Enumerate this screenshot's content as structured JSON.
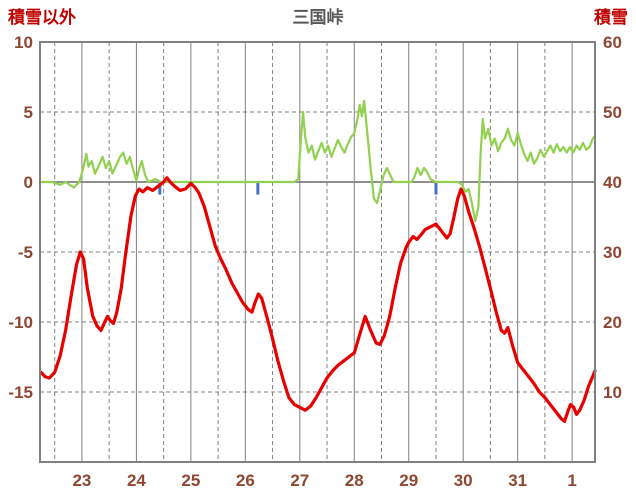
{
  "header": {
    "left_axis_title": "積雪以外",
    "right_axis_title": "積雪"
  },
  "colors": {
    "header_text": "#c00000",
    "title_text": "#595959",
    "axis_text": "#8f4632",
    "grid": "#808080",
    "background": "#ffffff"
  },
  "chart_data": {
    "type": "line",
    "title": "三国峠",
    "x_axis": {
      "labels": [
        "23",
        "24",
        "25",
        "26",
        "27",
        "28",
        "29",
        "30",
        "31",
        "1"
      ],
      "tick_positions": [
        23,
        24,
        25,
        26,
        27,
        28,
        29,
        30,
        31,
        32
      ],
      "range": [
        22.23,
        32.42
      ],
      "minor_grid": "dashed-half-day"
    },
    "left_axis": {
      "title": "積雪以外",
      "ticks": [
        10,
        5,
        0,
        -5,
        -10,
        -15
      ],
      "range": [
        -20,
        10
      ]
    },
    "right_axis": {
      "title": "積雪",
      "ticks": [
        60,
        50,
        40,
        30,
        20,
        10
      ],
      "range": [
        0,
        60
      ]
    },
    "grid": {
      "major_vertical": "solid",
      "minor_vertical": "dashed",
      "horizontal": "dashed",
      "zero_line": "solid"
    },
    "legend": "none",
    "precip_marks": {
      "id": "blue-tick-marks",
      "color": "#4472c4",
      "width": 3,
      "marks": [
        {
          "x": 24.43,
          "from": 0,
          "to": -0.9
        },
        {
          "x": 26.23,
          "from": 0,
          "to": -0.9
        },
        {
          "x": 29.5,
          "from": 0,
          "to": -0.9
        }
      ]
    },
    "series": [
      {
        "id": "red-line",
        "axis": "left",
        "color": "#e60000",
        "stroke_width": 3.2,
        "points": [
          [
            22.25,
            -13.6
          ],
          [
            22.32,
            -13.9
          ],
          [
            22.4,
            -14.0
          ],
          [
            22.5,
            -13.6
          ],
          [
            22.6,
            -12.4
          ],
          [
            22.7,
            -10.6
          ],
          [
            22.8,
            -8.2
          ],
          [
            22.9,
            -5.9
          ],
          [
            22.97,
            -5.0
          ],
          [
            23.03,
            -5.5
          ],
          [
            23.1,
            -7.6
          ],
          [
            23.2,
            -9.6
          ],
          [
            23.28,
            -10.3
          ],
          [
            23.35,
            -10.6
          ],
          [
            23.42,
            -10.0
          ],
          [
            23.47,
            -9.6
          ],
          [
            23.52,
            -9.9
          ],
          [
            23.58,
            -10.1
          ],
          [
            23.64,
            -9.3
          ],
          [
            23.72,
            -7.6
          ],
          [
            23.8,
            -5.2
          ],
          [
            23.9,
            -2.4
          ],
          [
            23.98,
            -1.0
          ],
          [
            24.05,
            -0.5
          ],
          [
            24.12,
            -0.7
          ],
          [
            24.2,
            -0.4
          ],
          [
            24.3,
            -0.6
          ],
          [
            24.4,
            -0.3
          ],
          [
            24.5,
            0.0
          ],
          [
            24.56,
            0.3
          ],
          [
            24.62,
            0.0
          ],
          [
            24.7,
            -0.3
          ],
          [
            24.8,
            -0.6
          ],
          [
            24.9,
            -0.5
          ],
          [
            25.0,
            -0.1
          ],
          [
            25.08,
            -0.4
          ],
          [
            25.15,
            -0.8
          ],
          [
            25.25,
            -1.8
          ],
          [
            25.35,
            -3.2
          ],
          [
            25.45,
            -4.6
          ],
          [
            25.55,
            -5.5
          ],
          [
            25.65,
            -6.3
          ],
          [
            25.75,
            -7.2
          ],
          [
            25.85,
            -7.9
          ],
          [
            25.95,
            -8.6
          ],
          [
            26.05,
            -9.1
          ],
          [
            26.12,
            -9.3
          ],
          [
            26.18,
            -8.6
          ],
          [
            26.24,
            -8.0
          ],
          [
            26.3,
            -8.3
          ],
          [
            26.4,
            -9.7
          ],
          [
            26.5,
            -11.2
          ],
          [
            26.6,
            -12.8
          ],
          [
            26.7,
            -14.2
          ],
          [
            26.8,
            -15.4
          ],
          [
            26.9,
            -15.9
          ],
          [
            27.0,
            -16.1
          ],
          [
            27.1,
            -16.3
          ],
          [
            27.2,
            -16.0
          ],
          [
            27.3,
            -15.4
          ],
          [
            27.4,
            -14.7
          ],
          [
            27.5,
            -14.0
          ],
          [
            27.6,
            -13.5
          ],
          [
            27.7,
            -13.1
          ],
          [
            27.8,
            -12.8
          ],
          [
            27.9,
            -12.5
          ],
          [
            28.0,
            -12.2
          ],
          [
            28.1,
            -10.9
          ],
          [
            28.2,
            -9.6
          ],
          [
            28.3,
            -10.6
          ],
          [
            28.4,
            -11.5
          ],
          [
            28.47,
            -11.6
          ],
          [
            28.55,
            -11.0
          ],
          [
            28.65,
            -9.6
          ],
          [
            28.75,
            -7.6
          ],
          [
            28.85,
            -5.8
          ],
          [
            28.95,
            -4.7
          ],
          [
            29.0,
            -4.3
          ],
          [
            29.08,
            -3.9
          ],
          [
            29.15,
            -4.1
          ],
          [
            29.22,
            -3.8
          ],
          [
            29.3,
            -3.4
          ],
          [
            29.4,
            -3.2
          ],
          [
            29.5,
            -3.0
          ],
          [
            29.6,
            -3.5
          ],
          [
            29.7,
            -4.0
          ],
          [
            29.76,
            -3.7
          ],
          [
            29.83,
            -2.5
          ],
          [
            29.9,
            -1.2
          ],
          [
            29.96,
            -0.5
          ],
          [
            30.02,
            -1.0
          ],
          [
            30.1,
            -2.1
          ],
          [
            30.2,
            -3.3
          ],
          [
            30.3,
            -4.6
          ],
          [
            30.4,
            -6.1
          ],
          [
            30.5,
            -7.6
          ],
          [
            30.6,
            -9.2
          ],
          [
            30.7,
            -10.6
          ],
          [
            30.76,
            -10.8
          ],
          [
            30.82,
            -10.4
          ],
          [
            30.9,
            -11.6
          ],
          [
            31.0,
            -12.9
          ],
          [
            31.1,
            -13.4
          ],
          [
            31.2,
            -13.9
          ],
          [
            31.3,
            -14.4
          ],
          [
            31.4,
            -15.0
          ],
          [
            31.5,
            -15.4
          ],
          [
            31.6,
            -15.9
          ],
          [
            31.7,
            -16.4
          ],
          [
            31.8,
            -16.9
          ],
          [
            31.86,
            -17.1
          ],
          [
            31.92,
            -16.4
          ],
          [
            31.97,
            -15.9
          ],
          [
            32.03,
            -16.1
          ],
          [
            32.08,
            -16.6
          ],
          [
            32.14,
            -16.3
          ],
          [
            32.22,
            -15.6
          ],
          [
            32.3,
            -14.6
          ],
          [
            32.42,
            -13.5
          ]
        ]
      },
      {
        "id": "green-line",
        "axis": "right",
        "color": "#92d050",
        "stroke_width": 2.2,
        "points": [
          [
            22.25,
            40
          ],
          [
            22.45,
            40
          ],
          [
            22.6,
            39.6
          ],
          [
            22.7,
            40
          ],
          [
            22.85,
            39.2
          ],
          [
            22.95,
            40
          ],
          [
            23.02,
            41.8
          ],
          [
            23.08,
            44
          ],
          [
            23.12,
            42.2
          ],
          [
            23.18,
            43
          ],
          [
            23.24,
            41.2
          ],
          [
            23.3,
            42.2
          ],
          [
            23.38,
            43.6
          ],
          [
            23.44,
            42
          ],
          [
            23.5,
            43
          ],
          [
            23.56,
            41.2
          ],
          [
            23.62,
            42.2
          ],
          [
            23.7,
            43.6
          ],
          [
            23.76,
            44.2
          ],
          [
            23.82,
            42.6
          ],
          [
            23.88,
            43.6
          ],
          [
            23.94,
            41.8
          ],
          [
            24.0,
            40.2
          ],
          [
            24.06,
            42.2
          ],
          [
            24.1,
            43
          ],
          [
            24.16,
            41
          ],
          [
            24.22,
            40
          ],
          [
            24.35,
            40.4
          ],
          [
            24.45,
            40
          ],
          [
            24.6,
            40
          ],
          [
            25.0,
            40
          ],
          [
            25.5,
            40
          ],
          [
            26.0,
            40
          ],
          [
            26.5,
            40
          ],
          [
            26.9,
            40
          ],
          [
            26.97,
            40.4
          ],
          [
            27.02,
            46
          ],
          [
            27.06,
            50
          ],
          [
            27.1,
            46.4
          ],
          [
            27.16,
            44.2
          ],
          [
            27.22,
            45.2
          ],
          [
            27.28,
            43.2
          ],
          [
            27.34,
            44.4
          ],
          [
            27.4,
            45.6
          ],
          [
            27.46,
            44.2
          ],
          [
            27.52,
            45.2
          ],
          [
            27.58,
            43.6
          ],
          [
            27.64,
            44.8
          ],
          [
            27.7,
            46
          ],
          [
            27.76,
            45
          ],
          [
            27.82,
            44.2
          ],
          [
            27.88,
            45.4
          ],
          [
            27.94,
            46.4
          ],
          [
            28.0,
            47
          ],
          [
            28.06,
            49
          ],
          [
            28.1,
            51
          ],
          [
            28.14,
            49.4
          ],
          [
            28.18,
            51.6
          ],
          [
            28.24,
            47
          ],
          [
            28.3,
            42
          ],
          [
            28.36,
            37.6
          ],
          [
            28.42,
            37
          ],
          [
            28.48,
            39
          ],
          [
            28.54,
            41
          ],
          [
            28.6,
            42
          ],
          [
            28.66,
            41
          ],
          [
            28.72,
            40
          ],
          [
            28.9,
            40
          ],
          [
            29.05,
            40
          ],
          [
            29.1,
            40.6
          ],
          [
            29.16,
            42
          ],
          [
            29.22,
            41
          ],
          [
            29.28,
            42
          ],
          [
            29.34,
            41.4
          ],
          [
            29.4,
            40.4
          ],
          [
            29.5,
            40
          ],
          [
            29.7,
            40
          ],
          [
            29.9,
            40
          ],
          [
            29.98,
            39.6
          ],
          [
            30.04,
            38.6
          ],
          [
            30.1,
            39
          ],
          [
            30.16,
            37
          ],
          [
            30.22,
            34.4
          ],
          [
            30.28,
            36.4
          ],
          [
            30.32,
            44
          ],
          [
            30.36,
            49
          ],
          [
            30.4,
            46.2
          ],
          [
            30.46,
            47.6
          ],
          [
            30.52,
            45.2
          ],
          [
            30.58,
            46.2
          ],
          [
            30.64,
            44.4
          ],
          [
            30.7,
            45.6
          ],
          [
            30.76,
            46.2
          ],
          [
            30.82,
            47.6
          ],
          [
            30.88,
            46
          ],
          [
            30.94,
            45.2
          ],
          [
            31.0,
            47
          ],
          [
            31.06,
            45.4
          ],
          [
            31.12,
            44
          ],
          [
            31.18,
            43
          ],
          [
            31.24,
            44.2
          ],
          [
            31.3,
            42.6
          ],
          [
            31.36,
            43.4
          ],
          [
            31.42,
            44.6
          ],
          [
            31.48,
            43.6
          ],
          [
            31.54,
            44.4
          ],
          [
            31.6,
            45.2
          ],
          [
            31.66,
            44.2
          ],
          [
            31.72,
            45.4
          ],
          [
            31.78,
            44.4
          ],
          [
            31.84,
            45
          ],
          [
            31.9,
            44.2
          ],
          [
            31.96,
            45
          ],
          [
            32.02,
            44.2
          ],
          [
            32.08,
            45.2
          ],
          [
            32.14,
            44.6
          ],
          [
            32.2,
            45.6
          ],
          [
            32.26,
            44.6
          ],
          [
            32.32,
            45
          ],
          [
            32.38,
            46.2
          ],
          [
            32.42,
            46.6
          ]
        ]
      }
    ]
  }
}
